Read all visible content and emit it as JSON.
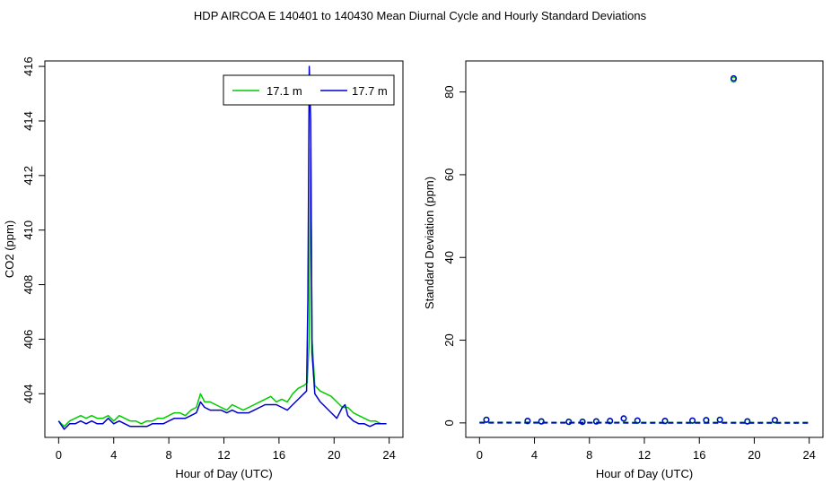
{
  "title": "HDP   AIRCOA E   140401 to 140430   Mean Diurnal Cycle and Hourly Standard Deviations",
  "chart_data": [
    {
      "type": "line",
      "xlabel": "Hour of Day (UTC)",
      "ylabel": "CO2 (ppm)",
      "xlim": [
        -1,
        25
      ],
      "ylim": [
        402.4,
        416.2
      ],
      "xticks": [
        0,
        4,
        8,
        12,
        16,
        20,
        24
      ],
      "yticks": [
        404,
        406,
        408,
        410,
        412,
        414,
        416
      ],
      "legend_position": "top-right",
      "series": [
        {
          "name": "17.1 m",
          "color": "#00cc00",
          "points": [
            [
              0.0,
              403.0
            ],
            [
              0.4,
              402.8
            ],
            [
              0.8,
              403.0
            ],
            [
              1.2,
              403.1
            ],
            [
              1.6,
              403.2
            ],
            [
              2.0,
              403.1
            ],
            [
              2.4,
              403.2
            ],
            [
              2.8,
              403.1
            ],
            [
              3.2,
              403.1
            ],
            [
              3.6,
              403.2
            ],
            [
              4.0,
              403.0
            ],
            [
              4.4,
              403.2
            ],
            [
              4.8,
              403.1
            ],
            [
              5.2,
              403.0
            ],
            [
              5.6,
              403.0
            ],
            [
              6.0,
              402.9
            ],
            [
              6.4,
              403.0
            ],
            [
              6.8,
              403.0
            ],
            [
              7.2,
              403.1
            ],
            [
              7.6,
              403.1
            ],
            [
              8.0,
              403.2
            ],
            [
              8.4,
              403.3
            ],
            [
              8.8,
              403.3
            ],
            [
              9.2,
              403.2
            ],
            [
              9.6,
              403.4
            ],
            [
              10.0,
              403.5
            ],
            [
              10.3,
              404.0
            ],
            [
              10.6,
              403.7
            ],
            [
              11.0,
              403.7
            ],
            [
              11.4,
              403.6
            ],
            [
              11.8,
              403.5
            ],
            [
              12.2,
              403.4
            ],
            [
              12.6,
              403.6
            ],
            [
              13.0,
              403.5
            ],
            [
              13.4,
              403.4
            ],
            [
              13.8,
              403.5
            ],
            [
              14.2,
              403.6
            ],
            [
              14.6,
              403.7
            ],
            [
              15.0,
              403.8
            ],
            [
              15.4,
              403.9
            ],
            [
              15.8,
              403.7
            ],
            [
              16.2,
              403.8
            ],
            [
              16.6,
              403.7
            ],
            [
              17.0,
              404.0
            ],
            [
              17.4,
              404.2
            ],
            [
              17.8,
              404.3
            ],
            [
              18.05,
              404.4
            ],
            [
              18.2,
              406.0
            ],
            [
              18.3,
              413.0
            ],
            [
              18.4,
              406.0
            ],
            [
              18.6,
              404.3
            ],
            [
              19.0,
              404.1
            ],
            [
              19.4,
              404.0
            ],
            [
              19.8,
              403.9
            ],
            [
              20.2,
              403.7
            ],
            [
              20.6,
              403.5
            ],
            [
              21.0,
              403.5
            ],
            [
              21.4,
              403.3
            ],
            [
              21.8,
              403.2
            ],
            [
              22.2,
              403.1
            ],
            [
              22.6,
              403.0
            ],
            [
              23.0,
              403.0
            ],
            [
              23.4,
              402.9
            ],
            [
              23.8,
              402.9
            ]
          ]
        },
        {
          "name": "17.7 m",
          "color": "#0000cc",
          "points": [
            [
              0.0,
              403.0
            ],
            [
              0.4,
              402.7
            ],
            [
              0.8,
              402.9
            ],
            [
              1.2,
              402.9
            ],
            [
              1.6,
              403.0
            ],
            [
              2.0,
              402.9
            ],
            [
              2.4,
              403.0
            ],
            [
              2.8,
              402.9
            ],
            [
              3.2,
              402.9
            ],
            [
              3.6,
              403.1
            ],
            [
              4.0,
              402.9
            ],
            [
              4.4,
              403.0
            ],
            [
              4.8,
              402.9
            ],
            [
              5.2,
              402.8
            ],
            [
              5.6,
              402.8
            ],
            [
              6.0,
              402.8
            ],
            [
              6.4,
              402.8
            ],
            [
              6.8,
              402.9
            ],
            [
              7.2,
              402.9
            ],
            [
              7.6,
              402.9
            ],
            [
              8.0,
              403.0
            ],
            [
              8.4,
              403.1
            ],
            [
              8.8,
              403.1
            ],
            [
              9.2,
              403.1
            ],
            [
              9.6,
              403.2
            ],
            [
              10.0,
              403.3
            ],
            [
              10.3,
              403.7
            ],
            [
              10.6,
              403.5
            ],
            [
              11.0,
              403.4
            ],
            [
              11.4,
              403.4
            ],
            [
              11.8,
              403.4
            ],
            [
              12.2,
              403.3
            ],
            [
              12.6,
              403.4
            ],
            [
              13.0,
              403.3
            ],
            [
              13.4,
              403.3
            ],
            [
              13.8,
              403.3
            ],
            [
              14.2,
              403.4
            ],
            [
              14.6,
              403.5
            ],
            [
              15.0,
              403.6
            ],
            [
              15.4,
              403.6
            ],
            [
              15.8,
              403.6
            ],
            [
              16.2,
              403.5
            ],
            [
              16.6,
              403.4
            ],
            [
              17.0,
              403.6
            ],
            [
              17.4,
              403.8
            ],
            [
              17.8,
              404.0
            ],
            [
              18.0,
              404.1
            ],
            [
              18.1,
              407.5
            ],
            [
              18.2,
              416.0
            ],
            [
              18.3,
              414.0
            ],
            [
              18.4,
              405.5
            ],
            [
              18.6,
              404.0
            ],
            [
              19.0,
              403.7
            ],
            [
              19.4,
              403.5
            ],
            [
              19.8,
              403.3
            ],
            [
              20.2,
              403.1
            ],
            [
              20.6,
              403.5
            ],
            [
              20.8,
              403.6
            ],
            [
              21.0,
              403.2
            ],
            [
              21.4,
              403.0
            ],
            [
              21.8,
              402.9
            ],
            [
              22.2,
              402.9
            ],
            [
              22.6,
              402.8
            ],
            [
              23.0,
              402.9
            ],
            [
              23.4,
              402.9
            ],
            [
              23.8,
              402.9
            ]
          ]
        }
      ]
    },
    {
      "type": "scatter",
      "xlabel": "Hour of Day (UTC)",
      "ylabel": "Standard Deviation (ppm)",
      "xlim": [
        -1,
        25
      ],
      "ylim": [
        -3.5,
        87.5
      ],
      "xticks": [
        0,
        4,
        8,
        12,
        16,
        20,
        24
      ],
      "yticks": [
        0,
        20,
        40,
        60,
        80
      ],
      "series": [
        {
          "name": "17.1 m",
          "color": "#00cc00",
          "points": [
            [
              0.5,
              0.7
            ],
            [
              3.5,
              0.4
            ],
            [
              4.5,
              0.3
            ],
            [
              6.5,
              0.2
            ],
            [
              7.5,
              0.2
            ],
            [
              8.5,
              0.3
            ],
            [
              9.5,
              0.4
            ],
            [
              10.5,
              1.0
            ],
            [
              11.5,
              0.5
            ],
            [
              13.5,
              0.4
            ],
            [
              15.5,
              0.5
            ],
            [
              16.5,
              0.6
            ],
            [
              17.5,
              0.7
            ],
            [
              18.5,
              83.0
            ],
            [
              19.5,
              0.3
            ],
            [
              21.5,
              0.6
            ]
          ]
        },
        {
          "name": "17.7 m",
          "color": "#0000cc",
          "points": [
            [
              0.5,
              0.8
            ],
            [
              3.5,
              0.5
            ],
            [
              4.5,
              0.4
            ],
            [
              6.5,
              0.3
            ],
            [
              7.5,
              0.3
            ],
            [
              8.5,
              0.4
            ],
            [
              9.5,
              0.5
            ],
            [
              10.5,
              1.1
            ],
            [
              11.5,
              0.6
            ],
            [
              13.5,
              0.5
            ],
            [
              15.5,
              0.6
            ],
            [
              16.5,
              0.7
            ],
            [
              17.5,
              0.8
            ],
            [
              18.5,
              83.3
            ],
            [
              19.5,
              0.4
            ],
            [
              21.5,
              0.7
            ]
          ]
        },
        {
          "name": "17.1 m",
          "color": "#00cc00",
          "mode": "line",
          "dashed": true,
          "points": [
            [
              0,
              0.1
            ],
            [
              24,
              0.05
            ]
          ]
        },
        {
          "name": "17.7 m",
          "color": "#0000cc",
          "mode": "line",
          "dashed": true,
          "points": [
            [
              0,
              0.05
            ],
            [
              24,
              0.0
            ]
          ]
        }
      ]
    }
  ]
}
